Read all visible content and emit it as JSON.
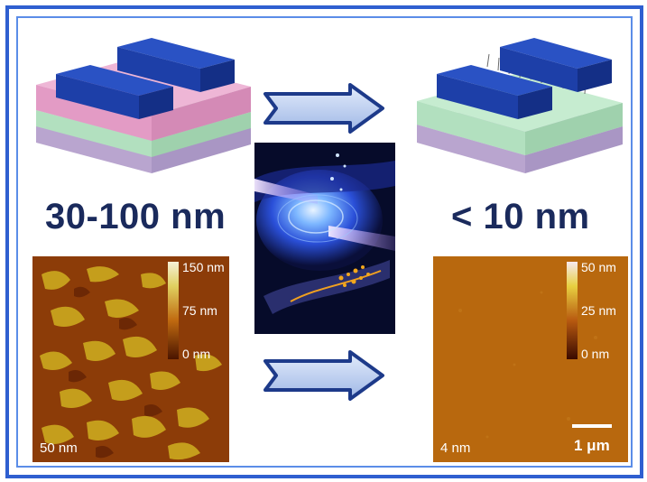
{
  "left_device": {
    "thickness_label": "30-100 nm"
  },
  "right_device": {
    "thickness_label": "< 10 nm"
  },
  "left_afm": {
    "colorbar_ticks": [
      "150 nm",
      "75 nm",
      "0 nm"
    ],
    "roughness_label": "50 nm"
  },
  "right_afm": {
    "colorbar_ticks": [
      "50 nm",
      "25 nm",
      "0 nm"
    ],
    "roughness_label": "4 nm",
    "scale_bar_label": "1 μm"
  },
  "colors": {
    "frame": "#2f5fd0",
    "electrode_blue": "#1d3fa8",
    "pink_layer": "#e9a7cf",
    "green_layer": "#b9e6c4",
    "purple_layer": "#c9b7dc",
    "afm_rough": "#b55a10",
    "afm_smooth": "#b8680e"
  }
}
